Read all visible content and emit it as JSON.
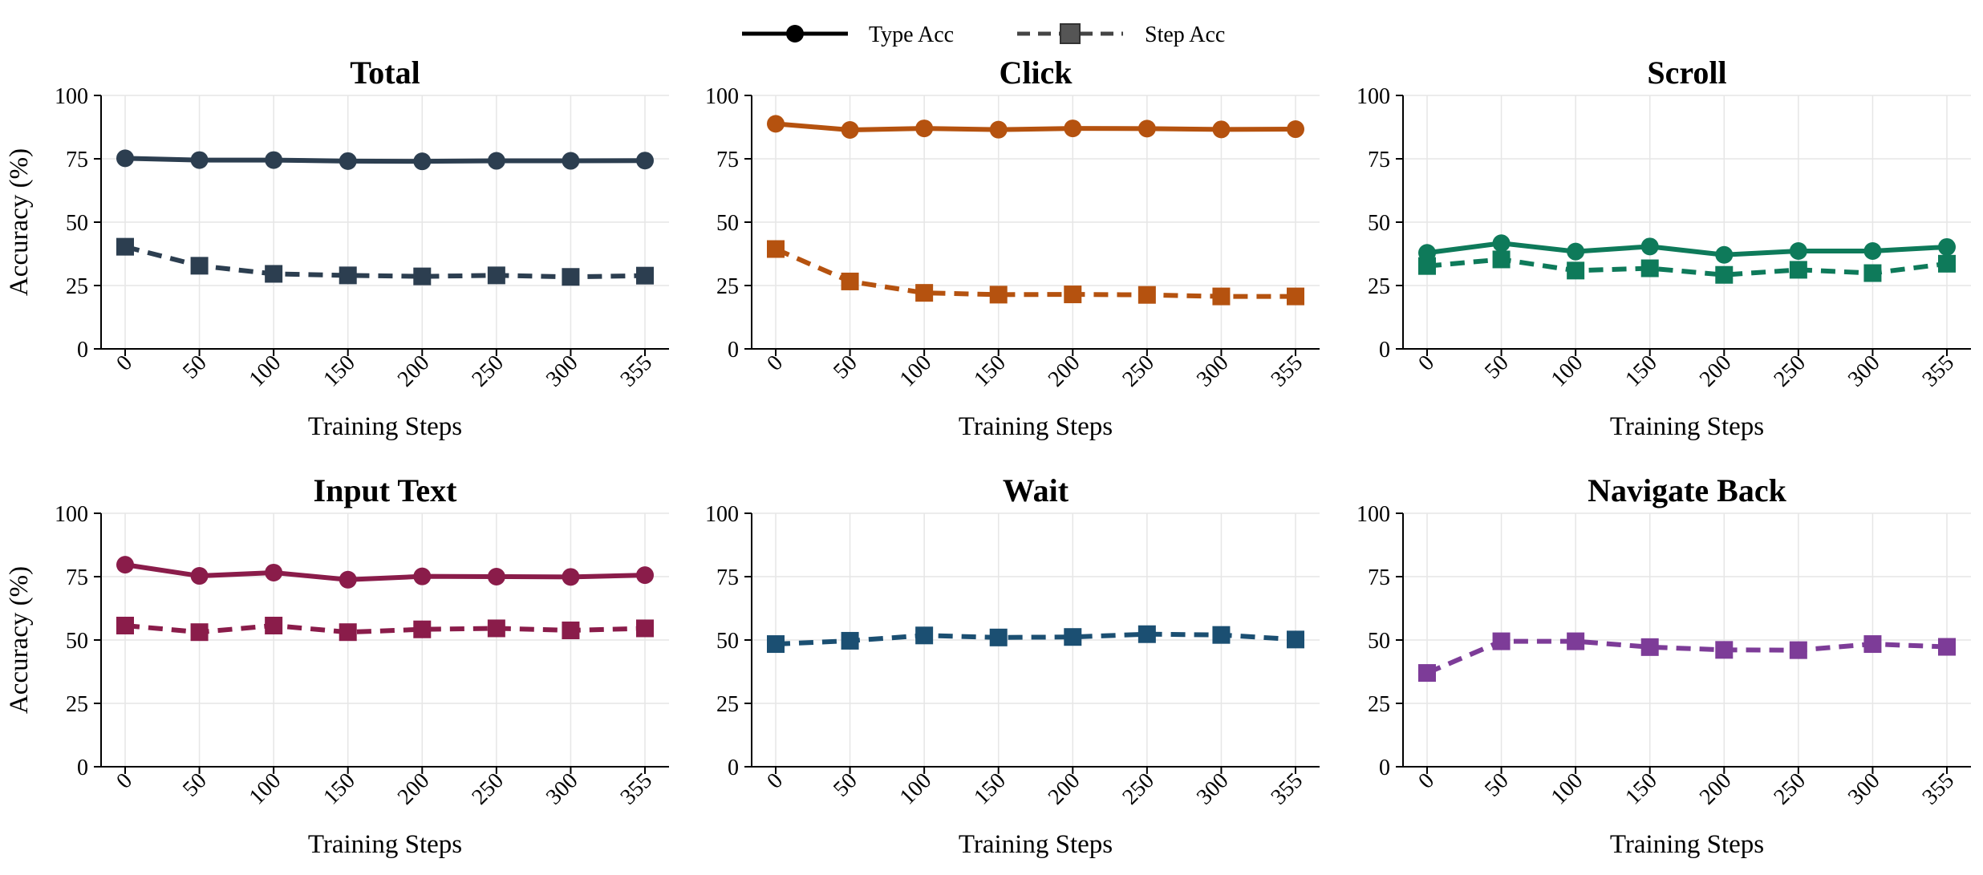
{
  "legend": {
    "type_acc_label": "Type Acc",
    "step_acc_label": "Step Acc"
  },
  "chart_data": [
    {
      "type": "line",
      "title": "Total",
      "xlabel": "Training Steps",
      "ylabel": "Accuracy (%)",
      "categories": [
        "0",
        "50",
        "100",
        "150",
        "200",
        "250",
        "300",
        "355"
      ],
      "ylim": [
        0,
        100
      ],
      "yticks": [
        0,
        25,
        50,
        75,
        100
      ],
      "grid": true,
      "color": "#2c3e50",
      "series": [
        {
          "name": "Type Acc",
          "values": [
            75.2,
            74.5,
            74.5,
            74.1,
            74.0,
            74.2,
            74.2,
            74.3
          ]
        },
        {
          "name": "Step Acc",
          "values": [
            40.3,
            32.8,
            29.6,
            29.0,
            28.6,
            29.0,
            28.4,
            28.9
          ]
        }
      ]
    },
    {
      "type": "line",
      "title": "Click",
      "xlabel": "Training Steps",
      "ylabel": "",
      "categories": [
        "0",
        "50",
        "100",
        "150",
        "200",
        "250",
        "300",
        "355"
      ],
      "ylim": [
        0,
        100
      ],
      "yticks": [
        0,
        25,
        50,
        75,
        100
      ],
      "grid": true,
      "color": "#b5520f",
      "series": [
        {
          "name": "Type Acc",
          "values": [
            88.8,
            86.4,
            87.0,
            86.5,
            87.0,
            86.9,
            86.6,
            86.7
          ]
        },
        {
          "name": "Step Acc",
          "values": [
            39.4,
            26.6,
            22.1,
            21.4,
            21.5,
            21.3,
            20.7,
            20.7
          ]
        }
      ]
    },
    {
      "type": "line",
      "title": "Scroll",
      "xlabel": "Training Steps",
      "ylabel": "",
      "categories": [
        "0",
        "50",
        "100",
        "150",
        "200",
        "250",
        "300",
        "355"
      ],
      "ylim": [
        0,
        100
      ],
      "yticks": [
        0,
        25,
        50,
        75,
        100
      ],
      "grid": true,
      "color": "#0e7a5a",
      "series": [
        {
          "name": "Type Acc",
          "values": [
            37.9,
            41.7,
            38.4,
            40.4,
            37.1,
            38.6,
            38.6,
            40.2
          ]
        },
        {
          "name": "Step Acc",
          "values": [
            32.7,
            35.3,
            30.9,
            31.8,
            29.2,
            31.2,
            29.9,
            33.6
          ]
        }
      ]
    },
    {
      "type": "line",
      "title": "Input Text",
      "xlabel": "Training Steps",
      "ylabel": "Accuracy (%)",
      "categories": [
        "0",
        "50",
        "100",
        "150",
        "200",
        "250",
        "300",
        "355"
      ],
      "ylim": [
        0,
        100
      ],
      "yticks": [
        0,
        25,
        50,
        75,
        100
      ],
      "grid": true,
      "color": "#8a1c4a",
      "series": [
        {
          "name": "Type Acc",
          "values": [
            79.7,
            75.3,
            76.6,
            73.8,
            75.1,
            75.0,
            74.9,
            75.6
          ]
        },
        {
          "name": "Step Acc",
          "values": [
            55.7,
            53.1,
            55.7,
            53.1,
            54.2,
            54.6,
            53.8,
            54.6
          ]
        }
      ]
    },
    {
      "type": "line",
      "title": "Wait",
      "xlabel": "Training Steps",
      "ylabel": "",
      "categories": [
        "0",
        "50",
        "100",
        "150",
        "200",
        "250",
        "300",
        "355"
      ],
      "ylim": [
        0,
        100
      ],
      "yticks": [
        0,
        25,
        50,
        75,
        100
      ],
      "grid": true,
      "color": "#1b4f72",
      "series": [
        {
          "name": "Step Acc",
          "values": [
            48.4,
            49.7,
            51.8,
            51.0,
            51.2,
            52.3,
            52.0,
            50.2
          ]
        }
      ]
    },
    {
      "type": "line",
      "title": "Navigate Back",
      "xlabel": "Training Steps",
      "ylabel": "",
      "categories": [
        "0",
        "50",
        "100",
        "150",
        "200",
        "250",
        "300",
        "355"
      ],
      "ylim": [
        0,
        100
      ],
      "yticks": [
        0,
        25,
        50,
        75,
        100
      ],
      "grid": true,
      "color": "#7d3c98",
      "series": [
        {
          "name": "Step Acc",
          "values": [
            37.0,
            49.5,
            49.5,
            47.2,
            46.1,
            46.0,
            48.4,
            47.3
          ]
        }
      ]
    }
  ]
}
